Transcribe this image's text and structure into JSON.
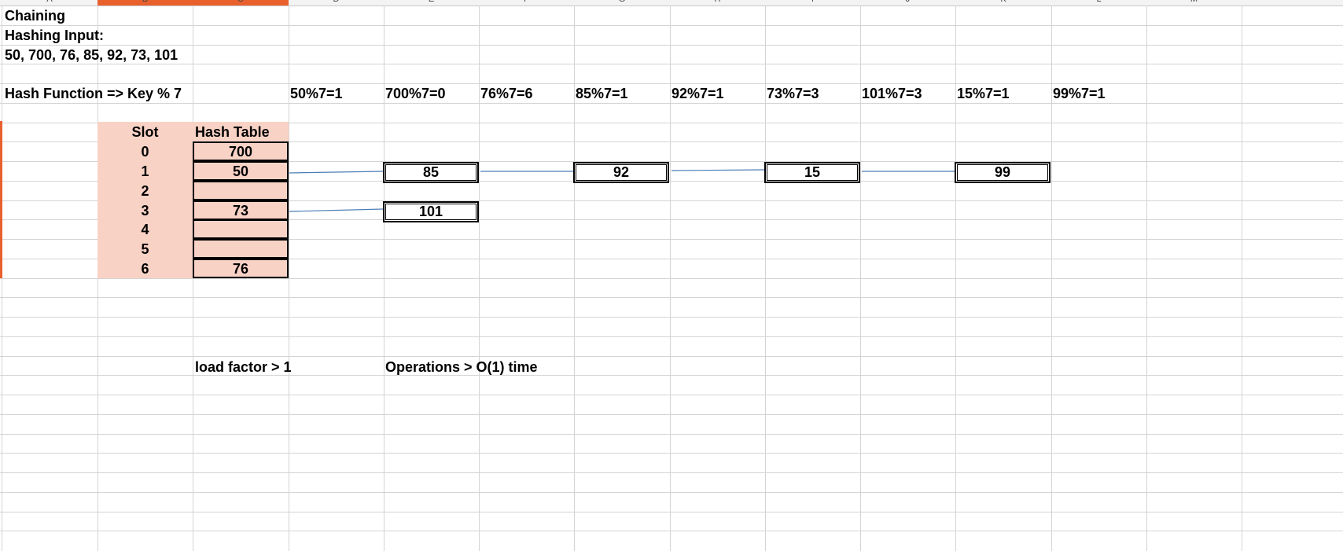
{
  "sheet": {
    "title": "Chaining",
    "input_label": "Hashing Input:",
    "input_values": "50, 700, 76, 85, 92, 73, 101",
    "hash_function": "Hash Function => Key % 7",
    "calculations": [
      "50%7=1",
      "700%7=0",
      "76%7=6",
      "85%7=1",
      "92%7=1",
      "73%7=3",
      "101%7=3",
      "15%7=1",
      "99%7=1"
    ],
    "table_headers": {
      "slot": "Slot",
      "hash_table": "Hash Table"
    },
    "slots": [
      {
        "slot": "0",
        "value": "700"
      },
      {
        "slot": "1",
        "value": "50"
      },
      {
        "slot": "2",
        "value": ""
      },
      {
        "slot": "3",
        "value": "73"
      },
      {
        "slot": "4",
        "value": ""
      },
      {
        "slot": "5",
        "value": ""
      },
      {
        "slot": "6",
        "value": "76"
      }
    ],
    "chain_slot_1": [
      "85",
      "92",
      "15",
      "99"
    ],
    "chain_slot_3": [
      "101"
    ],
    "load_factor": "load factor > 1",
    "operations": "Operations > O(1) time",
    "column_letters": [
      "A",
      "B",
      "C",
      "D",
      "E",
      "F",
      "G",
      "H",
      "I",
      "J",
      "K",
      "L",
      "M"
    ]
  },
  "colors": {
    "selection": "#e8602c",
    "table_fill": "#f9d2c6",
    "grid": "#d4d4d4",
    "link": "#4a7db5"
  }
}
